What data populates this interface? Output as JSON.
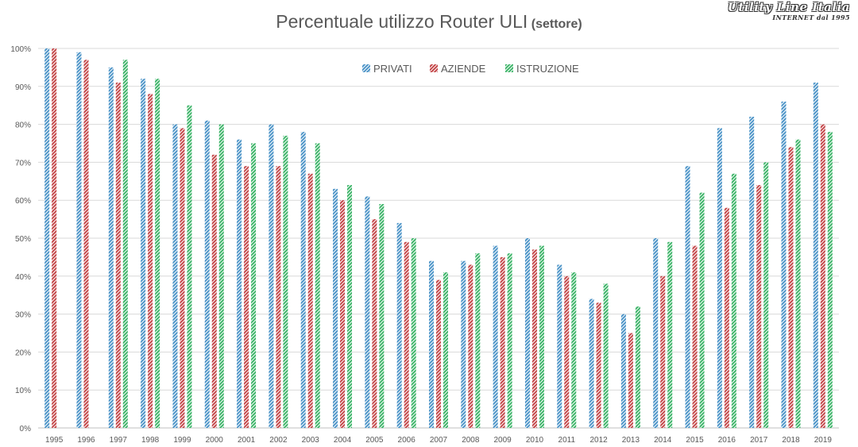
{
  "title": {
    "main": "Percentuale utilizzo Router ULI",
    "sub": "(settore)"
  },
  "logo": {
    "line1": "Utility Line Italia",
    "line2": "INTERNET dal 1995"
  },
  "colors": {
    "privati": "#4e95c8",
    "aziende": "#c4484a",
    "istruzione": "#3fb56a",
    "grid": "#d9d9d9",
    "axis_text": "#595959"
  },
  "chart_data": {
    "type": "bar",
    "title": "Percentuale utilizzo Router ULI (settore)",
    "xlabel": "",
    "ylabel": "",
    "ylim": [
      0,
      100
    ],
    "yticks": [
      "0%",
      "10%",
      "20%",
      "30%",
      "40%",
      "50%",
      "60%",
      "70%",
      "80%",
      "90%",
      "100%"
    ],
    "grid": true,
    "legend_position": "top-center",
    "categories": [
      "1995",
      "1996",
      "1997",
      "1998",
      "1999",
      "2000",
      "2001",
      "2002",
      "2003",
      "2004",
      "2005",
      "2006",
      "2007",
      "2008",
      "2009",
      "2010",
      "2011",
      "2012",
      "2013",
      "2014",
      "2015",
      "2016",
      "2017",
      "2018",
      "2019"
    ],
    "series": [
      {
        "name": "PRIVATI",
        "color": "#4e95c8",
        "values": [
          100,
          99,
          95,
          92,
          80,
          81,
          76,
          80,
          78,
          63,
          61,
          54,
          44,
          44,
          48,
          50,
          43,
          34,
          30,
          50,
          69,
          79,
          82,
          86,
          91
        ]
      },
      {
        "name": "AZIENDE",
        "color": "#c4484a",
        "values": [
          100,
          97,
          91,
          88,
          79,
          72,
          69,
          69,
          67,
          60,
          55,
          49,
          39,
          43,
          45,
          47,
          40,
          33,
          25,
          40,
          48,
          58,
          64,
          74,
          80
        ]
      },
      {
        "name": "ISTRUZIONE",
        "color": "#3fb56a",
        "values": [
          null,
          null,
          97,
          92,
          85,
          80,
          75,
          77,
          75,
          64,
          59,
          50,
          41,
          46,
          46,
          48,
          41,
          38,
          32,
          49,
          62,
          67,
          70,
          76,
          78
        ]
      }
    ]
  }
}
